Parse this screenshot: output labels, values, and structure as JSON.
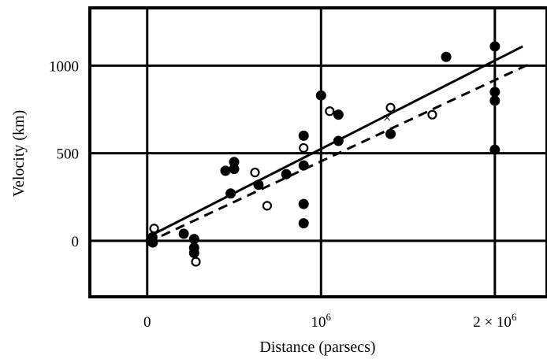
{
  "chart_data": {
    "type": "scatter",
    "title": "",
    "xlabel": "Distance (parsecs)",
    "ylabel": "Velocity (km)",
    "xlim": [
      -330000,
      2300000
    ],
    "ylim": [
      -320,
      1330
    ],
    "grid": true,
    "x_ticks": [
      {
        "value": 0,
        "label": "0"
      },
      {
        "value": 1000000,
        "label": "10",
        "sup": "6"
      },
      {
        "value": 2000000,
        "label": "2 × 10",
        "sup": "6"
      }
    ],
    "y_ticks": [
      {
        "value": 0,
        "label": "0"
      },
      {
        "value": 500,
        "label": "500"
      },
      {
        "value": 1000,
        "label": "1000"
      }
    ],
    "series": [
      {
        "marker": "filled-circle",
        "color": "#000000",
        "points": [
          [
            20000,
            0
          ],
          [
            32000,
            -10
          ],
          [
            30000,
            20
          ],
          [
            210000,
            40
          ],
          [
            270000,
            10
          ],
          [
            270000,
            -40
          ],
          [
            270000,
            -70
          ],
          [
            450000,
            400
          ],
          [
            500000,
            410
          ],
          [
            500000,
            450
          ],
          [
            480000,
            270
          ],
          [
            640000,
            320
          ],
          [
            800000,
            380
          ],
          [
            900000,
            600
          ],
          [
            900000,
            430
          ],
          [
            900000,
            210
          ],
          [
            900000,
            100
          ],
          [
            1000000,
            830
          ],
          [
            1100000,
            570
          ],
          [
            1100000,
            720
          ],
          [
            1400000,
            610
          ],
          [
            1720000,
            1050
          ],
          [
            2000000,
            1110
          ],
          [
            2000000,
            850
          ],
          [
            2000000,
            800
          ],
          [
            2000000,
            520
          ]
        ]
      },
      {
        "marker": "open-circle",
        "color": "#000000",
        "points": [
          [
            40000,
            70
          ],
          [
            280000,
            -120
          ],
          [
            620000,
            390
          ],
          [
            690000,
            200
          ],
          [
            900000,
            530
          ],
          [
            1050000,
            740
          ],
          [
            1400000,
            760
          ],
          [
            1640000,
            720
          ]
        ]
      }
    ],
    "trend_lines": [
      {
        "style": "solid",
        "from": [
          0,
          20
        ],
        "to": [
          2160000,
          1110
        ]
      },
      {
        "style": "dashed",
        "from": [
          0,
          -10
        ],
        "to": [
          2200000,
          1010
        ]
      }
    ],
    "annotations": [
      {
        "text": "×",
        "x": 1380000,
        "y": 700
      }
    ]
  }
}
